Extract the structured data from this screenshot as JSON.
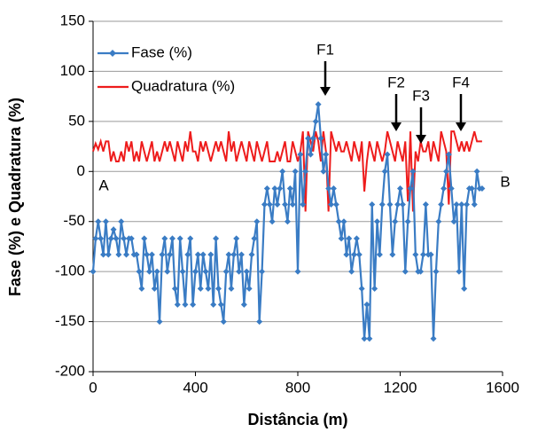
{
  "chart_data": {
    "type": "line",
    "xlabel": "Distância (m)",
    "ylabel": "Fase (%) e Quadratura (%)",
    "xlim": [
      0,
      1600
    ],
    "xticks": [
      0,
      400,
      800,
      1200,
      1600
    ],
    "ylim": [
      -200,
      150
    ],
    "yticks": [
      -200,
      -150,
      -100,
      -50,
      0,
      50,
      100,
      150
    ],
    "grid": true,
    "legend": "upper left",
    "annotations": [
      "F1",
      "F2",
      "F3",
      "F4",
      "A",
      "B"
    ],
    "x": [
      0,
      10,
      20,
      30,
      40,
      50,
      60,
      70,
      80,
      90,
      100,
      110,
      120,
      130,
      140,
      150,
      160,
      170,
      180,
      190,
      200,
      210,
      220,
      230,
      240,
      250,
      260,
      270,
      280,
      290,
      300,
      310,
      320,
      330,
      340,
      350,
      360,
      370,
      380,
      390,
      400,
      410,
      420,
      430,
      440,
      450,
      460,
      470,
      480,
      490,
      500,
      510,
      520,
      530,
      540,
      550,
      560,
      570,
      580,
      590,
      600,
      610,
      620,
      630,
      640,
      650,
      660,
      670,
      680,
      690,
      700,
      710,
      720,
      730,
      740,
      750,
      760,
      770,
      780,
      790,
      800,
      810,
      820,
      830,
      840,
      850,
      860,
      870,
      880,
      890,
      900,
      910,
      920,
      930,
      940,
      950,
      960,
      970,
      980,
      990,
      1000,
      1010,
      1020,
      1030,
      1040,
      1050,
      1060,
      1070,
      1080,
      1090,
      1100,
      1110,
      1120,
      1130,
      1140,
      1150,
      1160,
      1170,
      1180,
      1190,
      1200,
      1210,
      1220,
      1230,
      1240,
      1250,
      1260,
      1270,
      1280,
      1290,
      1300,
      1310,
      1320,
      1330,
      1340,
      1350,
      1360,
      1370,
      1380,
      1390,
      1400,
      1410,
      1420,
      1430,
      1440,
      1450,
      1460,
      1470,
      1480,
      1490,
      1500,
      1510,
      1520
    ],
    "series": [
      {
        "name": "Fase (%)",
        "color": "#3a7cc4",
        "marker": "diamond",
        "values": [
          -100,
          -67,
          -50,
          -67,
          -83,
          -50,
          -83,
          -67,
          -58,
          -67,
          -83,
          -50,
          -67,
          -83,
          -67,
          -67,
          -83,
          -83,
          -100,
          -117,
          -67,
          -83,
          -100,
          -83,
          -117,
          -100,
          -150,
          -83,
          -67,
          -100,
          -83,
          -67,
          -117,
          -133,
          -67,
          -100,
          -133,
          -83,
          -67,
          -133,
          -100,
          -83,
          -117,
          -83,
          -100,
          -117,
          -83,
          -133,
          -67,
          -117,
          -133,
          -150,
          -100,
          -83,
          -117,
          -83,
          -67,
          -100,
          -83,
          -133,
          -100,
          -117,
          -83,
          -67,
          -50,
          -150,
          -100,
          -33,
          -17,
          -33,
          -50,
          -17,
          -33,
          -17,
          0,
          -33,
          -50,
          -17,
          -33,
          0,
          -100,
          17,
          -33,
          0,
          33,
          17,
          33,
          50,
          67,
          33,
          0,
          17,
          -17,
          -33,
          -17,
          -33,
          -50,
          -67,
          -50,
          -83,
          -67,
          -100,
          -83,
          -67,
          -83,
          -117,
          -167,
          -133,
          -167,
          -33,
          -117,
          -50,
          -83,
          -33,
          0,
          17,
          -33,
          -83,
          -50,
          -33,
          -17,
          -33,
          -100,
          -50,
          -17,
          0,
          -83,
          -100,
          -100,
          -83,
          -33,
          -83,
          -83,
          -167,
          -100,
          -50,
          -33,
          -17,
          0,
          17,
          -17,
          -50,
          -33,
          -100,
          -33,
          -117,
          -33,
          -17,
          -17,
          -33,
          0,
          -17,
          -17
        ]
      },
      {
        "name": "Quadratura (%)",
        "color": "#ee1c1c",
        "marker": "none",
        "values": [
          20,
          28,
          22,
          30,
          20,
          30,
          30,
          10,
          20,
          10,
          10,
          20,
          10,
          30,
          20,
          30,
          10,
          20,
          10,
          30,
          20,
          10,
          20,
          30,
          10,
          20,
          10,
          20,
          30,
          20,
          30,
          20,
          10,
          30,
          20,
          10,
          30,
          20,
          40,
          20,
          20,
          10,
          30,
          20,
          30,
          20,
          10,
          20,
          30,
          20,
          30,
          20,
          10,
          40,
          20,
          30,
          10,
          20,
          30,
          20,
          10,
          30,
          20,
          10,
          30,
          20,
          10,
          20,
          30,
          10,
          10,
          10,
          20,
          10,
          20,
          30,
          10,
          10,
          30,
          20,
          10,
          20,
          40,
          -40,
          40,
          30,
          20,
          40,
          30,
          10,
          40,
          20,
          -40,
          40,
          30,
          20,
          30,
          20,
          20,
          30,
          20,
          10,
          30,
          20,
          10,
          30,
          -20,
          10,
          30,
          20,
          10,
          30,
          20,
          10,
          20,
          40,
          30,
          20,
          10,
          30,
          20,
          10,
          30,
          -30,
          40,
          -40,
          20,
          10,
          30,
          20,
          20,
          30,
          10,
          30,
          20,
          10,
          40,
          30,
          20,
          -33,
          40,
          40,
          30,
          20,
          30,
          20,
          30,
          20,
          30,
          40,
          30,
          30,
          30
        ]
      }
    ]
  }
}
